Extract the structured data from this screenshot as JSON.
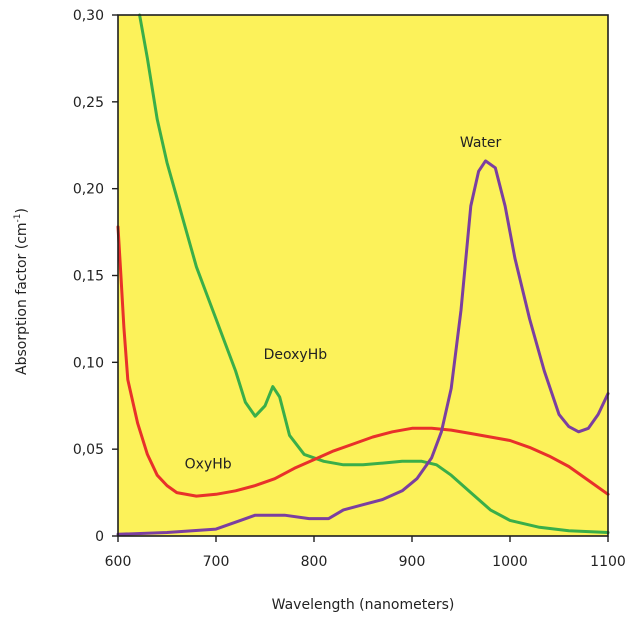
{
  "chart_data": {
    "type": "line",
    "xlabel": "Wavelength (nanometers)",
    "ylabel_main": "Absorption factor (cm",
    "ylabel_sup": "-1",
    "ylabel_end": ")",
    "xlim": [
      600,
      1100
    ],
    "ylim": [
      0,
      0.3
    ],
    "x_ticks": [
      600,
      700,
      800,
      900,
      1000,
      1100
    ],
    "x_tick_labels": [
      "600",
      "700",
      "800",
      "900",
      "1000",
      "1100"
    ],
    "y_ticks": [
      0,
      0.05,
      0.1,
      0.15,
      0.2,
      0.25,
      0.3
    ],
    "y_tick_labels": [
      "0",
      "0,05",
      "0,10",
      "0,15",
      "0,20",
      "0,25",
      "0,30"
    ],
    "grid": false,
    "plot_background": "#FCF25A",
    "series": [
      {
        "name": "DeoxyHb",
        "color": "#3AAE49",
        "points": [
          [
            622,
            0.3
          ],
          [
            630,
            0.275
          ],
          [
            640,
            0.24
          ],
          [
            650,
            0.215
          ],
          [
            660,
            0.195
          ],
          [
            670,
            0.175
          ],
          [
            680,
            0.155
          ],
          [
            690,
            0.14
          ],
          [
            700,
            0.125
          ],
          [
            710,
            0.11
          ],
          [
            720,
            0.095
          ],
          [
            730,
            0.077
          ],
          [
            740,
            0.069
          ],
          [
            750,
            0.075
          ],
          [
            758,
            0.086
          ],
          [
            765,
            0.08
          ],
          [
            775,
            0.058
          ],
          [
            790,
            0.047
          ],
          [
            810,
            0.043
          ],
          [
            830,
            0.041
          ],
          [
            850,
            0.041
          ],
          [
            870,
            0.042
          ],
          [
            890,
            0.043
          ],
          [
            910,
            0.043
          ],
          [
            925,
            0.041
          ],
          [
            940,
            0.035
          ],
          [
            960,
            0.025
          ],
          [
            980,
            0.015
          ],
          [
            1000,
            0.009
          ],
          [
            1030,
            0.005
          ],
          [
            1060,
            0.003
          ],
          [
            1100,
            0.002
          ]
        ]
      },
      {
        "name": "OxyHb",
        "color": "#E8312A",
        "points": [
          [
            600,
            0.178
          ],
          [
            603,
            0.15
          ],
          [
            606,
            0.12
          ],
          [
            610,
            0.09
          ],
          [
            620,
            0.065
          ],
          [
            630,
            0.047
          ],
          [
            640,
            0.035
          ],
          [
            650,
            0.029
          ],
          [
            660,
            0.025
          ],
          [
            680,
            0.023
          ],
          [
            700,
            0.024
          ],
          [
            720,
            0.026
          ],
          [
            740,
            0.029
          ],
          [
            760,
            0.033
          ],
          [
            780,
            0.039
          ],
          [
            800,
            0.044
          ],
          [
            820,
            0.049
          ],
          [
            840,
            0.053
          ],
          [
            860,
            0.057
          ],
          [
            880,
            0.06
          ],
          [
            900,
            0.062
          ],
          [
            920,
            0.062
          ],
          [
            940,
            0.061
          ],
          [
            960,
            0.059
          ],
          [
            980,
            0.057
          ],
          [
            1000,
            0.055
          ],
          [
            1020,
            0.051
          ],
          [
            1040,
            0.046
          ],
          [
            1060,
            0.04
          ],
          [
            1080,
            0.032
          ],
          [
            1100,
            0.024
          ]
        ]
      },
      {
        "name": "Water",
        "color": "#7B3FA0",
        "points": [
          [
            600,
            0.001
          ],
          [
            650,
            0.002
          ],
          [
            700,
            0.004
          ],
          [
            725,
            0.009
          ],
          [
            740,
            0.012
          ],
          [
            770,
            0.012
          ],
          [
            795,
            0.01
          ],
          [
            815,
            0.01
          ],
          [
            830,
            0.015
          ],
          [
            850,
            0.018
          ],
          [
            870,
            0.021
          ],
          [
            890,
            0.026
          ],
          [
            905,
            0.033
          ],
          [
            920,
            0.045
          ],
          [
            930,
            0.06
          ],
          [
            940,
            0.085
          ],
          [
            950,
            0.13
          ],
          [
            960,
            0.19
          ],
          [
            968,
            0.21
          ],
          [
            975,
            0.216
          ],
          [
            985,
            0.212
          ],
          [
            995,
            0.19
          ],
          [
            1005,
            0.16
          ],
          [
            1020,
            0.125
          ],
          [
            1035,
            0.095
          ],
          [
            1050,
            0.07
          ],
          [
            1060,
            0.063
          ],
          [
            1070,
            0.06
          ],
          [
            1080,
            0.062
          ],
          [
            1090,
            0.07
          ],
          [
            1100,
            0.082
          ]
        ]
      }
    ],
    "annotations": [
      {
        "text": "DeoxyHb",
        "x": 781,
        "y": 0.102
      },
      {
        "text": "OxyHb",
        "x": 692,
        "y": 0.039
      },
      {
        "text": "Water",
        "x": 970,
        "y": 0.224
      }
    ]
  }
}
